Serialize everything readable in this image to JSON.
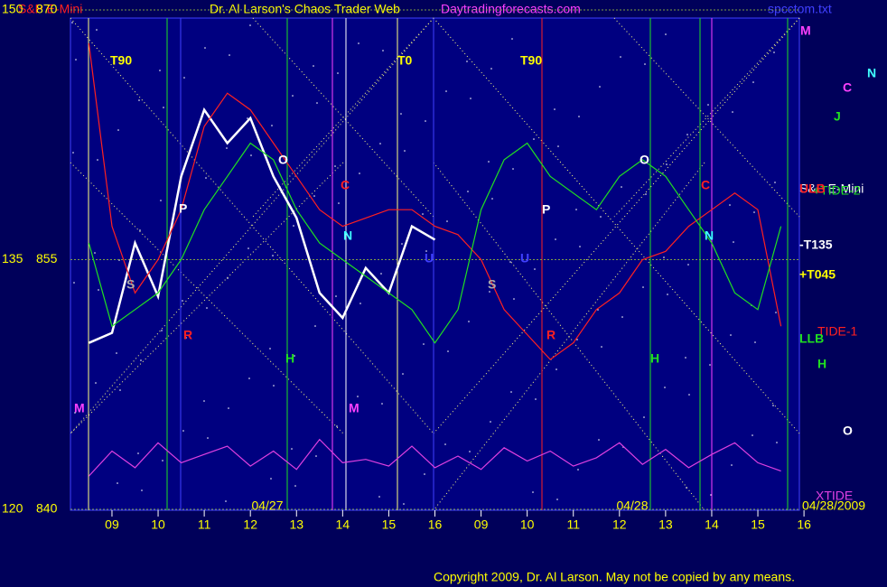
{
  "header": {
    "instrument": "S&P E-Mini",
    "site": "Daytradingforecasts.com",
    "file": "spcctom.txt",
    "copyright": "Copyright 2009, Dr. Al Larson. May not be copied by any means."
  },
  "chart_data": {
    "type": "line",
    "title": "Dr. Al Larson's Chaos Trader Web",
    "x": [
      0.5,
      1,
      1.5,
      2,
      2.5,
      3,
      3.5,
      4,
      4.5,
      5,
      5.5,
      6,
      6.5,
      7,
      7.5,
      8,
      8.5,
      9,
      9.5,
      10,
      10.5,
      11,
      11.5,
      12,
      12.5,
      13,
      13.5,
      14,
      14.5,
      15,
      15.5
    ],
    "xlim": [
      0.1,
      15.9
    ],
    "xticks": [
      {
        "value": 1,
        "label": "09"
      },
      {
        "value": 2,
        "label": "10"
      },
      {
        "value": 3,
        "label": "11"
      },
      {
        "value": 4,
        "label": "12"
      },
      {
        "value": 5,
        "label": "13"
      },
      {
        "value": 6,
        "label": "14"
      },
      {
        "value": 7,
        "label": "15"
      },
      {
        "value": 8,
        "label": "16"
      },
      {
        "value": 9,
        "label": "09"
      },
      {
        "value": 10,
        "label": "10"
      },
      {
        "value": 11,
        "label": "11"
      },
      {
        "value": 12,
        "label": "12"
      },
      {
        "value": 13,
        "label": "13"
      },
      {
        "value": 14,
        "label": "14"
      },
      {
        "value": 15,
        "label": "15"
      },
      {
        "value": 16,
        "label": "16"
      }
    ],
    "dates": [
      "04/27",
      "04/28",
      "04/28/2009"
    ],
    "ylim": [
      840,
      870
    ],
    "yticks": [
      840,
      855,
      870
    ],
    "y2lim": [
      120,
      150
    ],
    "y2ticks": [
      120,
      135,
      150
    ],
    "series": [
      {
        "name": "S&P E-Mini",
        "color": "#ffffff",
        "values": [
          850,
          850.6,
          856,
          852.8,
          860,
          864,
          862,
          863.5,
          860,
          857.5,
          853,
          851.5,
          854.5,
          853,
          857,
          856.2,
          null,
          null,
          null,
          null,
          null,
          null,
          null,
          null,
          null,
          null,
          null,
          null,
          null,
          null,
          null
        ]
      },
      {
        "name": "TIDE-1",
        "color": "#ff2020",
        "values": [
          868,
          857,
          853,
          855,
          858,
          863,
          865,
          864,
          862,
          860,
          858,
          857,
          857.5,
          858,
          858,
          857,
          856.5,
          855,
          852,
          850.5,
          849,
          850,
          852,
          853,
          855,
          855.5,
          857,
          858,
          859,
          858,
          851
        ]
      },
      {
        "name": "+TIDE-2",
        "color": "#20e020",
        "values": [
          856,
          851,
          852,
          853,
          855,
          858,
          860,
          862,
          861,
          858,
          856,
          855,
          854,
          853,
          852,
          850,
          852,
          858,
          861,
          862,
          860,
          859,
          858,
          860,
          861,
          860,
          858,
          856,
          853,
          852,
          857
        ]
      },
      {
        "name": "XTIDE",
        "color": "#e040e0",
        "values": [
          842,
          843.5,
          842.5,
          844,
          842.8,
          843.3,
          843.8,
          842.6,
          843.5,
          842.4,
          844.2,
          842.8,
          843,
          842.6,
          843.8,
          842.5,
          843.2,
          842.4,
          843.7,
          842.9,
          843.5,
          842.6,
          843.1,
          844,
          842.7,
          843.6,
          842.5,
          843.3,
          844,
          842.8,
          842.3
        ]
      }
    ],
    "annotations": [
      "T90",
      "T0",
      "T90",
      "P",
      "O",
      "S",
      "R",
      "H",
      "M",
      "N",
      "C",
      "U",
      "P",
      "O",
      "S",
      "R",
      "H",
      "M",
      "N",
      "C",
      "U",
      "M",
      "C",
      "N",
      "J",
      "ULB",
      "-T135",
      "+T045",
      "LLB",
      "H",
      "O"
    ]
  }
}
